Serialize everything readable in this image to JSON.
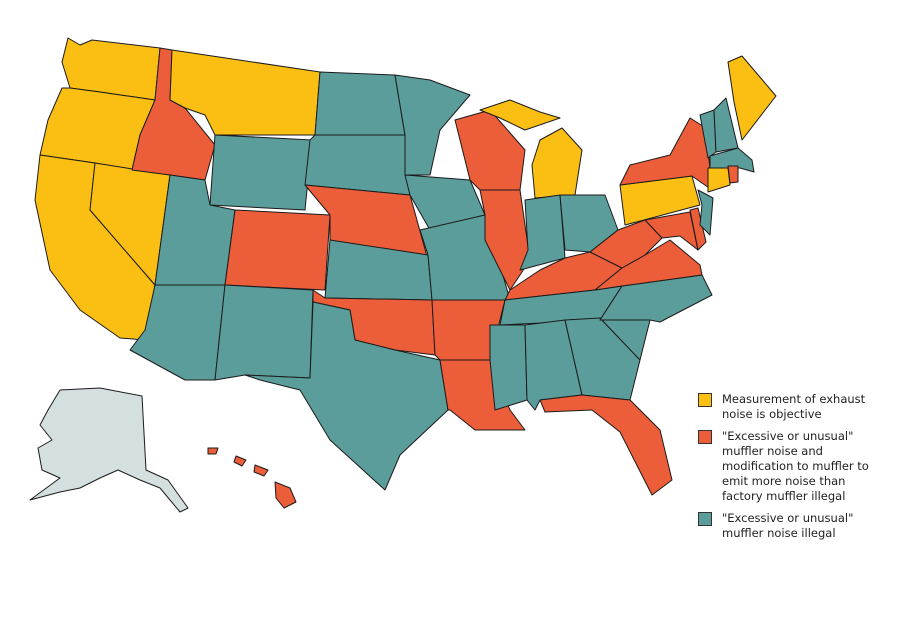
{
  "legend": [
    {
      "label": "Measurement of exhaust noise is objective",
      "color": "#fbbf14"
    },
    {
      "label": "\"Excessive or unusual\" muffler noise and modification to muffler to emit more noise than factory muffler illegal",
      "color": "#ec5d3a"
    },
    {
      "label": "\"Excessive or unusual\" muffler noise illegal",
      "color": "#5b9d9b"
    }
  ]
}
